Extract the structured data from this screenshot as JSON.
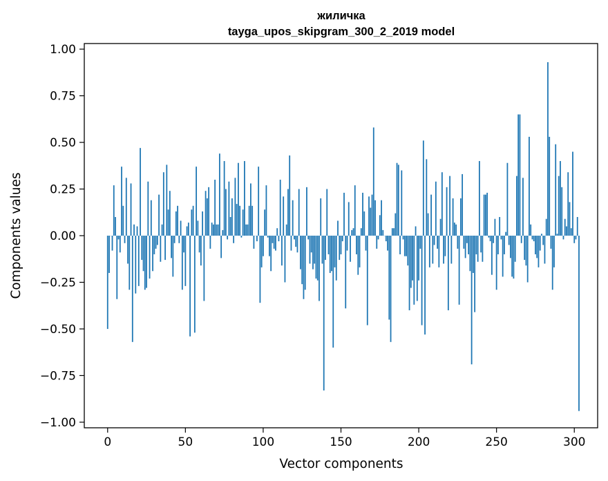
{
  "chart_data": {
    "type": "bar",
    "title": "жиличка",
    "subtitle": "tayga_upos_skipgram_300_2_2019 model",
    "xlabel": "Vector components",
    "ylabel": "Components values",
    "xlim": [
      -15,
      315
    ],
    "ylim": [
      -1.03,
      1.03
    ],
    "xticks": [
      0,
      50,
      100,
      150,
      200,
      250,
      300
    ],
    "xtick_labels": [
      "0",
      "50",
      "100",
      "150",
      "200",
      "250",
      "300"
    ],
    "yticks": [
      1.0,
      0.75,
      0.5,
      0.25,
      0.0,
      -0.25,
      -0.5,
      -0.75,
      -1.0
    ],
    "ytick_labels": [
      "1.00",
      "0.75",
      "0.50",
      "0.25",
      "0.00",
      "−0.25",
      "−0.50",
      "−0.75",
      "−1.00"
    ],
    "grid": false,
    "bar_color": "#1f77b4",
    "values": [
      -0.5,
      -0.2,
      0.0,
      -0.08,
      0.27,
      0.1,
      -0.34,
      -0.02,
      -0.09,
      0.37,
      0.16,
      -0.04,
      0.31,
      -0.15,
      -0.29,
      0.28,
      -0.57,
      0.06,
      -0.31,
      0.05,
      -0.27,
      0.47,
      -0.13,
      -0.19,
      -0.29,
      -0.28,
      0.29,
      -0.23,
      0.19,
      -0.19,
      -0.1,
      -0.07,
      -0.05,
      0.22,
      -0.14,
      0.06,
      0.34,
      -0.13,
      0.38,
      0.14,
      0.24,
      -0.12,
      -0.22,
      -0.04,
      0.13,
      0.16,
      -0.04,
      0.08,
      -0.29,
      -0.09,
      -0.27,
      0.05,
      0.07,
      -0.54,
      0.14,
      0.16,
      -0.52,
      0.37,
      0.08,
      -0.09,
      -0.16,
      0.13,
      -0.35,
      0.24,
      0.2,
      0.26,
      -0.07,
      0.07,
      0.06,
      0.3,
      0.06,
      0.06,
      0.44,
      -0.12,
      0.03,
      0.4,
      0.25,
      -0.02,
      0.29,
      0.1,
      0.2,
      -0.04,
      0.31,
      0.17,
      0.39,
      0.16,
      -0.01,
      0.14,
      0.4,
      0.06,
      0.06,
      0.16,
      0.28,
      0.16,
      -0.07,
      0.0,
      -0.03,
      0.37,
      -0.36,
      -0.17,
      -0.11,
      0.14,
      0.27,
      -0.01,
      -0.11,
      -0.19,
      -0.04,
      -0.07,
      -0.08,
      0.04,
      -0.03,
      0.3,
      -0.16,
      0.21,
      -0.25,
      0.06,
      0.25,
      0.43,
      -0.08,
      0.19,
      -0.02,
      -0.06,
      -0.09,
      0.25,
      -0.18,
      -0.26,
      -0.34,
      -0.29,
      0.26,
      -0.02,
      -0.15,
      -0.09,
      -0.18,
      -0.15,
      -0.23,
      -0.24,
      -0.35,
      0.2,
      -0.15,
      -0.83,
      -0.13,
      0.25,
      -0.1,
      -0.2,
      -0.19,
      -0.6,
      -0.17,
      -0.24,
      0.08,
      -0.13,
      -0.1,
      -0.03,
      0.23,
      -0.39,
      -0.08,
      0.18,
      -0.14,
      0.03,
      0.04,
      0.27,
      -0.1,
      -0.21,
      -0.17,
      0.04,
      0.23,
      0.13,
      -0.08,
      -0.48,
      0.21,
      0.15,
      0.22,
      0.58,
      0.19,
      -0.07,
      -0.02,
      0.11,
      0.19,
      0.03,
      0.0,
      -0.03,
      -0.08,
      -0.45,
      -0.57,
      0.04,
      0.04,
      0.12,
      0.39,
      0.38,
      -0.1,
      0.35,
      -0.02,
      -0.11,
      -0.11,
      -0.16,
      -0.4,
      -0.28,
      -0.24,
      -0.37,
      0.05,
      -0.35,
      -0.24,
      -0.07,
      -0.48,
      0.51,
      -0.53,
      0.41,
      0.12,
      -0.17,
      0.22,
      -0.15,
      -0.05,
      0.29,
      -0.07,
      -0.17,
      0.09,
      0.34,
      -0.15,
      -0.11,
      0.26,
      -0.4,
      0.32,
      -0.15,
      0.2,
      0.07,
      0.06,
      -0.07,
      -0.37,
      0.2,
      0.33,
      -0.07,
      -0.12,
      -0.04,
      -0.1,
      -0.19,
      -0.69,
      -0.2,
      -0.41,
      -0.1,
      -0.14,
      0.4,
      -0.09,
      -0.14,
      0.22,
      0.22,
      0.23,
      -0.01,
      -0.03,
      -0.21,
      -0.04,
      0.09,
      -0.29,
      -0.1,
      0.1,
      -0.02,
      -0.22,
      -0.1,
      0.02,
      0.39,
      -0.05,
      -0.12,
      -0.22,
      -0.23,
      -0.14,
      0.32,
      0.65,
      0.65,
      -0.04,
      0.31,
      -0.13,
      -0.16,
      -0.25,
      0.53,
      0.06,
      -0.02,
      -0.03,
      -0.1,
      -0.12,
      -0.17,
      -0.08,
      0.01,
      -0.05,
      -0.15,
      0.09,
      0.93,
      0.53,
      -0.07,
      -0.29,
      -0.17,
      0.49,
      0.01,
      0.32,
      0.4,
      0.26,
      -0.02,
      0.09,
      0.05,
      0.34,
      0.18,
      0.04,
      0.45,
      -0.04,
      -0.02,
      0.1,
      -0.94
    ]
  }
}
